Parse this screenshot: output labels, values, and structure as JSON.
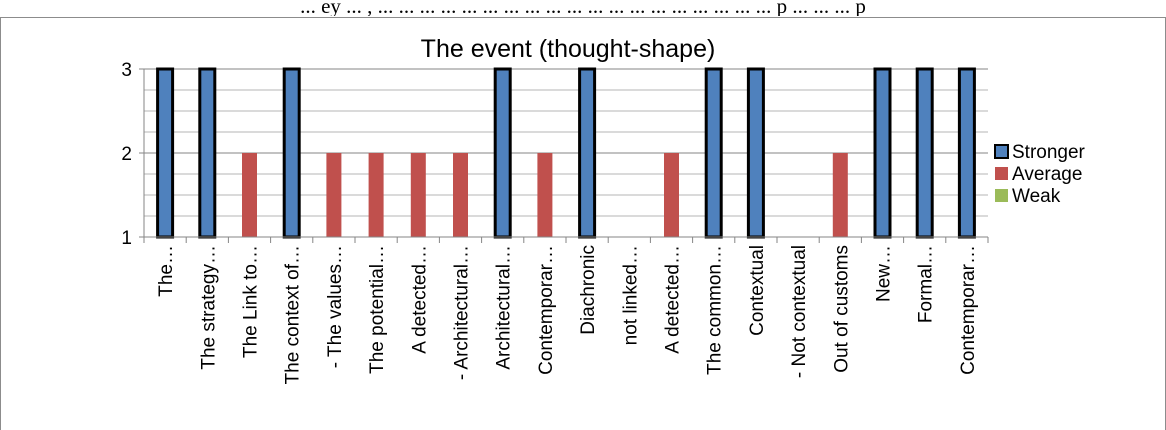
{
  "top_text": "... ey ... , ... ... ... ... ... ... ... ... ... ... ... ... ... ... ... ... ... ... ... p ... ... ... p",
  "chart_data": {
    "type": "bar",
    "title": "The event (thought-shape)",
    "xlabel": "",
    "ylabel": "",
    "ylim": [
      1,
      3
    ],
    "yticks": [
      1,
      2,
      3
    ],
    "grid": true,
    "legend_position": "right",
    "categories": [
      "The…",
      "The strategy…",
      "The Link to…",
      "The context of…",
      "- The values…",
      "The potential…",
      "A detected…",
      "- Architectural…",
      "Architectural…",
      "Contemporar…",
      "Diachronic",
      "not linked…",
      "A detected…",
      "The common…",
      "Contextual",
      "- Not contextual",
      "Out of customs",
      "New…",
      "Formal…",
      "Contemporar…"
    ],
    "series": [
      {
        "name": "Stronger",
        "color": "#4F81BD",
        "values": [
          3,
          3,
          null,
          3,
          null,
          null,
          null,
          null,
          3,
          null,
          3,
          null,
          null,
          3,
          3,
          null,
          null,
          3,
          3,
          3
        ]
      },
      {
        "name": "Average",
        "color": "#C0504D",
        "values": [
          null,
          null,
          2,
          null,
          2,
          2,
          2,
          2,
          null,
          2,
          null,
          null,
          2,
          null,
          null,
          null,
          2,
          null,
          null,
          null
        ]
      },
      {
        "name": "Weak",
        "color": "#9BBB59",
        "values": [
          null,
          null,
          null,
          null,
          null,
          null,
          null,
          null,
          null,
          null,
          null,
          null,
          null,
          null,
          null,
          null,
          null,
          null,
          null,
          null
        ]
      }
    ]
  }
}
